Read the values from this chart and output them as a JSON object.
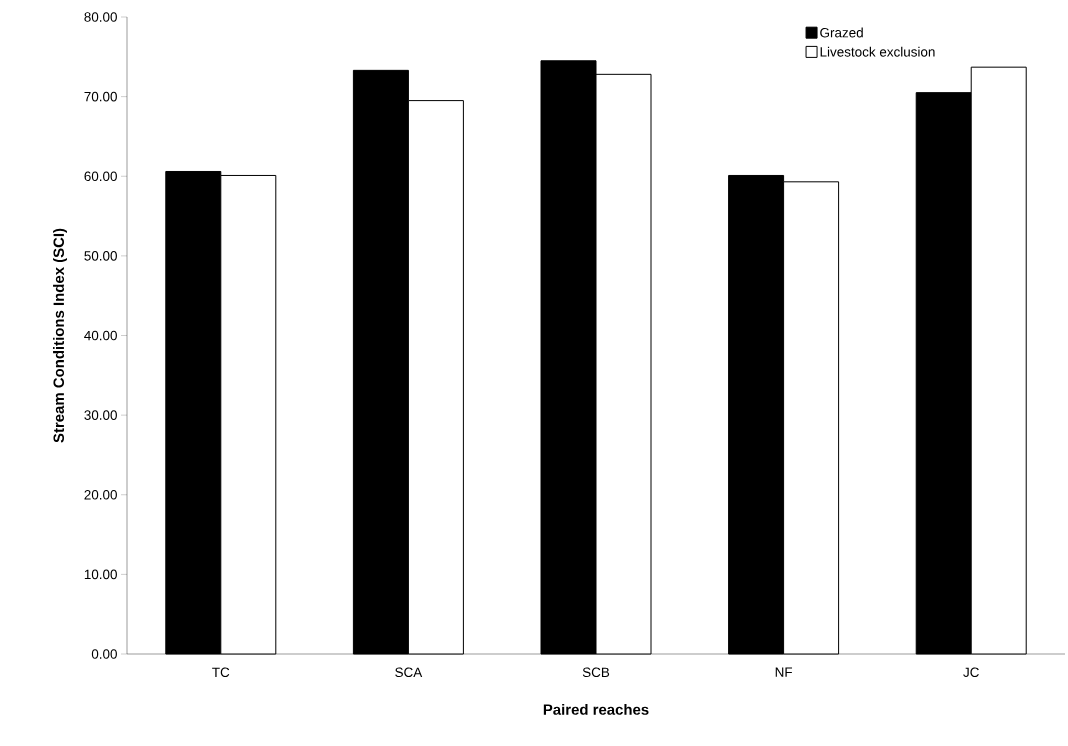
{
  "chart_data": {
    "type": "bar",
    "xlabel": "Paired reaches",
    "ylabel": "Stream Conditions Index (SCI)",
    "categories": [
      "TC",
      "SCA",
      "SCB",
      "NF",
      "JC"
    ],
    "series": [
      {
        "name": "Grazed",
        "color": "#000000",
        "values": [
          60.6,
          73.3,
          74.5,
          60.1,
          70.5
        ]
      },
      {
        "name": "Livestock exclusion",
        "color": "#ffffff",
        "values": [
          60.1,
          69.5,
          72.8,
          59.3,
          73.7
        ]
      }
    ],
    "ylim": [
      0,
      80
    ],
    "yticks": [
      {
        "value": 0,
        "label": "0.00"
      },
      {
        "value": 10,
        "label": "10.00"
      },
      {
        "value": 20,
        "label": "20.00"
      },
      {
        "value": 30,
        "label": "30.00"
      },
      {
        "value": 40,
        "label": "40.00"
      },
      {
        "value": 50,
        "label": "50.00"
      },
      {
        "value": 60,
        "label": "60.00"
      },
      {
        "value": 70,
        "label": "70.00"
      },
      {
        "value": 80,
        "label": "80.00"
      }
    ],
    "grid": false,
    "legend": "top right"
  }
}
